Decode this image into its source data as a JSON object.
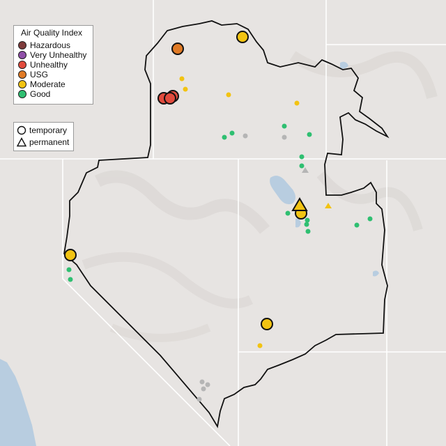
{
  "legend": {
    "title": "Air Quality Index",
    "categories": [
      {
        "label": "Hazardous",
        "color": "#7e3b3b"
      },
      {
        "label": "Very Unhealthy",
        "color": "#8f4fa8"
      },
      {
        "label": "Unhealthy",
        "color": "#e14b3d"
      },
      {
        "label": "USG",
        "color": "#e07a25"
      },
      {
        "label": "Moderate",
        "color": "#f2c312"
      },
      {
        "label": "Good",
        "color": "#2fbf71"
      }
    ],
    "station_types": [
      {
        "label": "temporary",
        "icon": "circle"
      },
      {
        "label": "permanent",
        "icon": "triangle"
      }
    ]
  },
  "colors": {
    "land": "#e7e4e2",
    "water": "#b8cde0",
    "boundary": "#111111",
    "state_lines": "#ffffff",
    "no_data": "#b9b9b9"
  },
  "markers_note_colors": {
    "unhealthy": "#e14b3d",
    "usg": "#e07a25",
    "moderate": "#f2c312",
    "good": "#2fbf71",
    "nodata": "#b5b5b5"
  }
}
